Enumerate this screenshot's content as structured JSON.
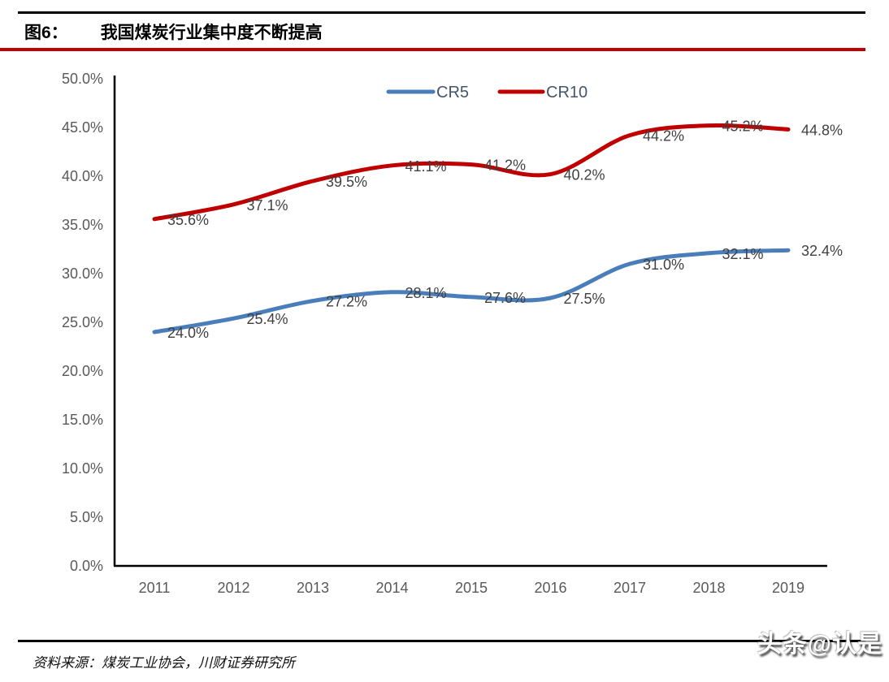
{
  "figure": {
    "label": "图6：",
    "title": "我国煤炭行业集中度不断提高"
  },
  "chart_data": {
    "type": "line",
    "categories": [
      "2011",
      "2012",
      "2013",
      "2014",
      "2015",
      "2016",
      "2017",
      "2018",
      "2019"
    ],
    "series": [
      {
        "name": "CR5",
        "color": "#4A7EBB",
        "values": [
          24.0,
          25.4,
          27.2,
          28.1,
          27.6,
          27.5,
          31.0,
          32.1,
          32.4
        ]
      },
      {
        "name": "CR10",
        "color": "#C00000",
        "values": [
          35.6,
          37.1,
          39.5,
          41.1,
          41.2,
          40.2,
          44.2,
          45.2,
          44.8
        ]
      }
    ],
    "ylim": [
      0,
      50
    ],
    "ytick_values": [
      0,
      5,
      10,
      15,
      20,
      25,
      30,
      35,
      40,
      45,
      50
    ],
    "ytick_labels": [
      "0.0%",
      "5.0%",
      "10.0%",
      "15.0%",
      "20.0%",
      "25.0%",
      "30.0%",
      "35.0%",
      "40.0%",
      "45.0%",
      "50.0%"
    ],
    "data_labels": true,
    "grid": false,
    "legend_position": "top-center",
    "smoothed_lines": true
  },
  "colors": {
    "accent_red_rule": "#C00000",
    "axis_line": "#000000",
    "tick_text": "#595959",
    "data_label_text": "#404040",
    "legend_text": "#44546A",
    "title_text": "#000000"
  },
  "footer": {
    "source": "资料来源：煤炭工业协会，川财证券研究所"
  },
  "watermark": {
    "text": "头条@认是"
  }
}
